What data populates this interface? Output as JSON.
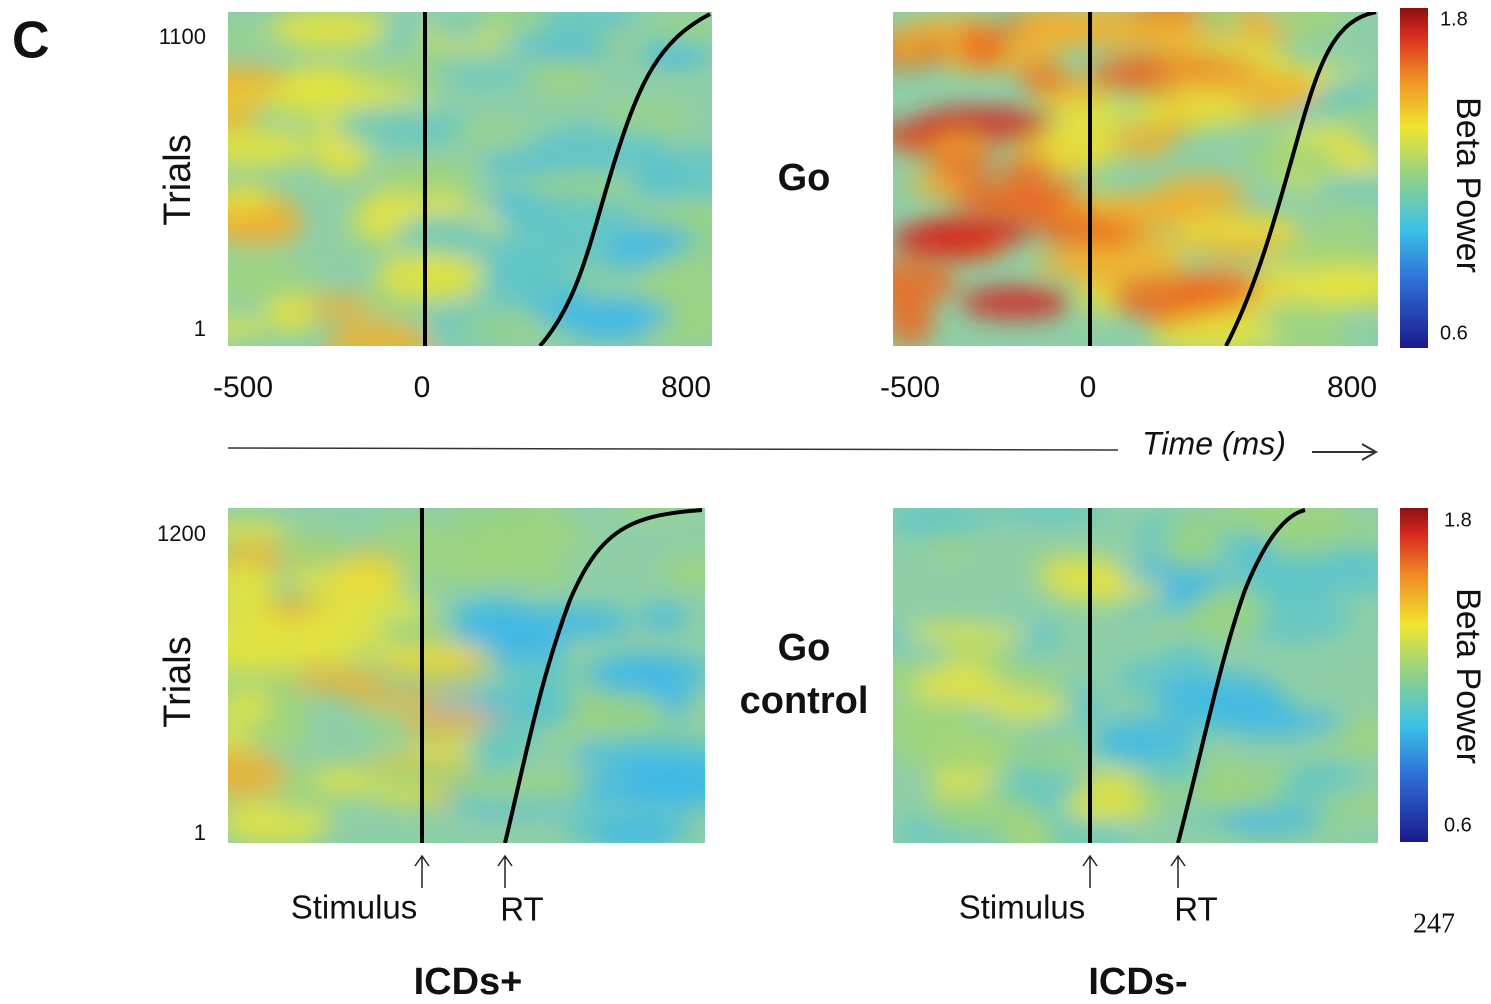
{
  "panel_label": "C",
  "rows": [
    {
      "label": [
        "Go"
      ],
      "y_axis_label": "Trials",
      "y_ticks": [
        "1100",
        "1"
      ]
    },
    {
      "label": [
        "Go",
        "control"
      ],
      "y_axis_label": "Trials",
      "y_ticks": [
        "1200",
        "1"
      ]
    }
  ],
  "x_ticks": [
    "-500",
    "0",
    "800"
  ],
  "x_axis_label": "Time (ms)",
  "colorbar": {
    "label": "Beta Power",
    "max": "1.8",
    "min": "0.6"
  },
  "markers": [
    "Stimulus",
    "RT"
  ],
  "groups": [
    "ICDs+",
    "ICDs-"
  ],
  "page_number": "247"
}
